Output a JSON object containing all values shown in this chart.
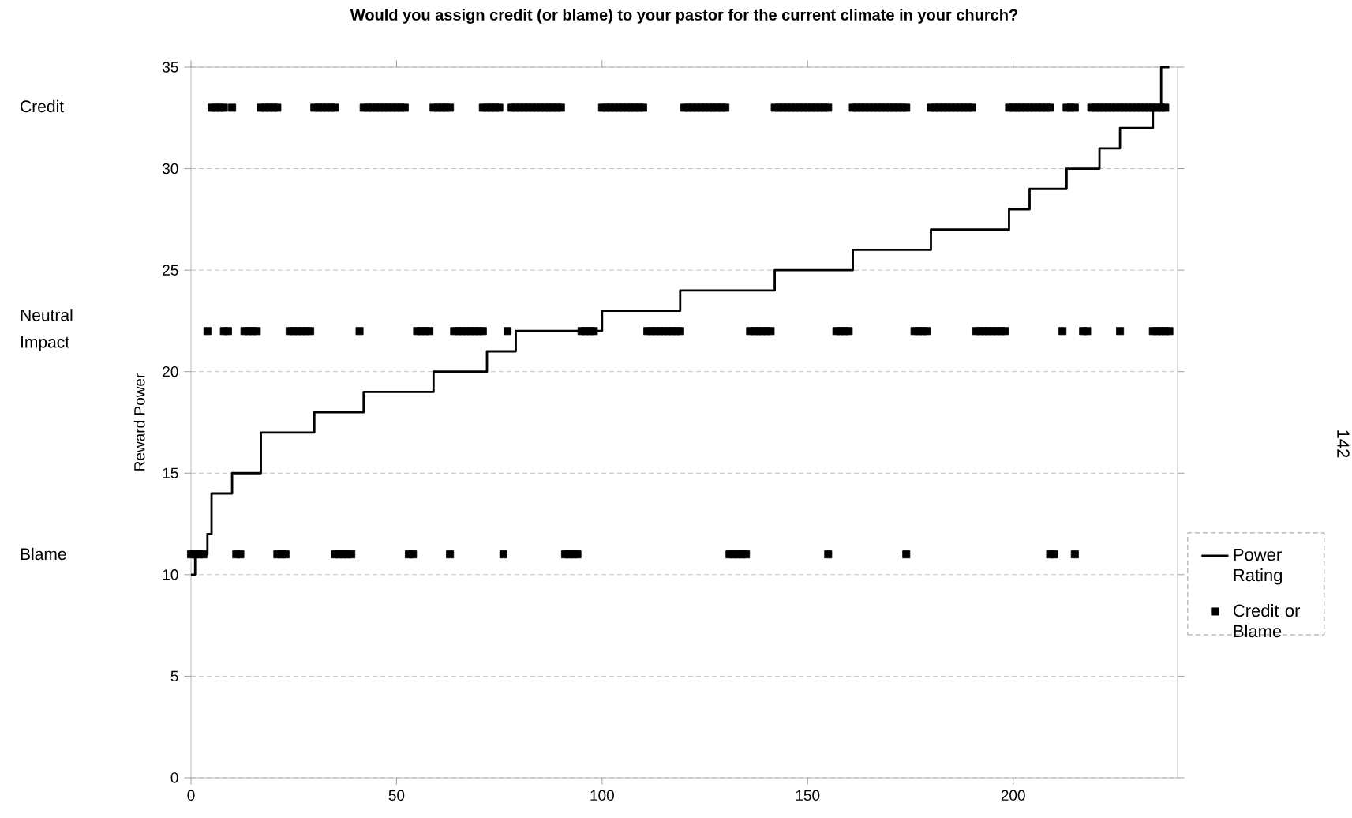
{
  "chart_data": {
    "type": "scatter",
    "title": "Would you assign credit (or blame) to your pastor for the current climate in your church?",
    "ylabel": "Reward Power",
    "xlim": [
      0,
      240
    ],
    "xticks": [
      0,
      50,
      100,
      150,
      200
    ],
    "ylim": [
      0,
      35
    ],
    "yticks": [
      0,
      5,
      10,
      15,
      20,
      25,
      30,
      35
    ],
    "grid": "y",
    "legend": "right",
    "series": [
      {
        "name": "Power Rating",
        "type": "step",
        "color": "#000000",
        "marker": "none",
        "line_style": "solid",
        "x": [
          0,
          1,
          4,
          5,
          10,
          17,
          30,
          42,
          59,
          72,
          79,
          100,
          119,
          142,
          161,
          180,
          199,
          204,
          213,
          221,
          226,
          234,
          236,
          238
        ],
        "values": [
          10,
          11,
          12,
          14,
          15,
          17,
          18,
          19,
          20,
          21,
          22,
          23,
          24,
          25,
          26,
          27,
          28,
          29,
          30,
          31,
          32,
          33,
          35,
          35
        ]
      },
      {
        "name": "Credit or Blame",
        "color": "#000000",
        "marker": "square",
        "x": [
          5,
          6,
          7,
          8,
          10,
          17,
          18,
          19,
          20,
          21,
          30,
          31,
          32,
          33,
          34,
          35,
          42,
          43,
          44,
          45,
          46,
          47,
          48,
          49,
          50,
          51,
          52,
          59,
          60,
          61,
          62,
          63,
          71,
          72,
          73,
          74,
          75,
          78,
          79,
          80,
          81,
          82,
          83,
          84,
          85,
          86,
          87,
          88,
          89,
          90,
          100,
          101,
          102,
          103,
          104,
          105,
          106,
          107,
          108,
          109,
          110,
          120,
          121,
          122,
          123,
          124,
          125,
          126,
          127,
          128,
          129,
          130,
          142,
          143,
          144,
          145,
          146,
          147,
          148,
          149,
          150,
          151,
          152,
          153,
          154,
          155,
          161,
          162,
          163,
          164,
          165,
          166,
          167,
          168,
          169,
          170,
          171,
          172,
          173,
          174,
          180,
          181,
          182,
          183,
          184,
          185,
          186,
          187,
          188,
          189,
          190,
          199,
          200,
          201,
          202,
          203,
          204,
          205,
          206,
          207,
          208,
          209,
          213,
          214,
          215,
          219,
          220,
          221,
          222,
          223,
          224,
          225,
          226,
          227,
          228,
          229,
          230,
          231,
          232,
          233,
          234,
          235,
          236,
          237
        ],
        "values": [
          33,
          33,
          33,
          33,
          33,
          33,
          33,
          33,
          33,
          33,
          33,
          33,
          33,
          33,
          33,
          33,
          33,
          33,
          33,
          33,
          33,
          33,
          33,
          33,
          33,
          33,
          33,
          33,
          33,
          33,
          33,
          33,
          33,
          33,
          33,
          33,
          33,
          33,
          33,
          33,
          33,
          33,
          33,
          33,
          33,
          33,
          33,
          33,
          33,
          33,
          33,
          33,
          33,
          33,
          33,
          33,
          33,
          33,
          33,
          33,
          33,
          33,
          33,
          33,
          33,
          33,
          33,
          33,
          33,
          33,
          33,
          33,
          33,
          33,
          33,
          33,
          33,
          33,
          33,
          33,
          33,
          33,
          33,
          33,
          33,
          33,
          33,
          33,
          33,
          33,
          33,
          33,
          33,
          33,
          33,
          33,
          33,
          33,
          33,
          33,
          33,
          33,
          33,
          33,
          33,
          33,
          33,
          33,
          33,
          33,
          33,
          33,
          33,
          33,
          33,
          33,
          33,
          33,
          33,
          33,
          33,
          33,
          33,
          33,
          33,
          33,
          33,
          33,
          33,
          33,
          33,
          33,
          33,
          33,
          33,
          33,
          33,
          33,
          33,
          33,
          33,
          33,
          33,
          33
        ]
      },
      {
        "color": "#000000",
        "marker": "square",
        "x": [
          4,
          8,
          9,
          13,
          14,
          15,
          16,
          24,
          25,
          26,
          27,
          28,
          29,
          41,
          55,
          56,
          57,
          58,
          64,
          65,
          66,
          67,
          68,
          69,
          70,
          71,
          77,
          95,
          96,
          97,
          98,
          111,
          112,
          113,
          114,
          115,
          116,
          117,
          118,
          119,
          136,
          137,
          138,
          139,
          140,
          141,
          157,
          158,
          159,
          160,
          176,
          177,
          178,
          179,
          191,
          192,
          193,
          194,
          195,
          196,
          197,
          198,
          212,
          217,
          218,
          226,
          234,
          235,
          236,
          237,
          238
        ],
        "values": [
          22,
          22,
          22,
          22,
          22,
          22,
          22,
          22,
          22,
          22,
          22,
          22,
          22,
          22,
          22,
          22,
          22,
          22,
          22,
          22,
          22,
          22,
          22,
          22,
          22,
          22,
          22,
          22,
          22,
          22,
          22,
          22,
          22,
          22,
          22,
          22,
          22,
          22,
          22,
          22,
          22,
          22,
          22,
          22,
          22,
          22,
          22,
          22,
          22,
          22,
          22,
          22,
          22,
          22,
          22,
          22,
          22,
          22,
          22,
          22,
          22,
          22,
          22,
          22,
          22,
          22,
          22,
          22,
          22,
          22,
          22
        ]
      },
      {
        "color": "#000000",
        "marker": "square",
        "x": [
          0,
          1,
          2,
          3,
          11,
          12,
          21,
          22,
          23,
          35,
          36,
          37,
          38,
          39,
          53,
          54,
          63,
          76,
          91,
          92,
          93,
          94,
          131,
          132,
          133,
          134,
          135,
          155,
          174,
          209,
          210,
          215
        ],
        "values": [
          11,
          11,
          11,
          11,
          11,
          11,
          11,
          11,
          11,
          11,
          11,
          11,
          11,
          11,
          11,
          11,
          11,
          11,
          11,
          11,
          11,
          11,
          11,
          11,
          11,
          11,
          11,
          11,
          11,
          11,
          11,
          11
        ]
      }
    ],
    "annotations": [
      "Credit",
      "Neutral Impact",
      "Blame",
      "142"
    ]
  }
}
